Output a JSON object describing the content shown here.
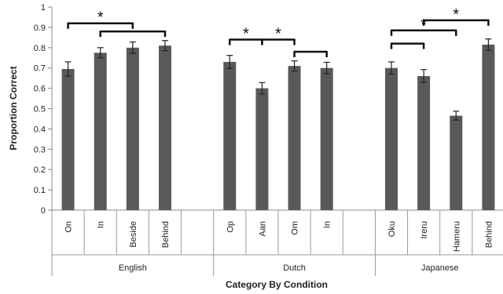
{
  "chart_data": {
    "type": "bar",
    "ylabel": "Proportion Correct",
    "xlabel": "Category By Condition",
    "ylim": [
      0,
      1
    ],
    "yticks": [
      "0",
      "0.1",
      "0.2",
      "0.3",
      "0.4",
      "0.5",
      "0.6",
      "0.7",
      "0.8",
      "0.9",
      "1"
    ],
    "grid": false,
    "bar_color": "#595959",
    "groups": [
      {
        "name": "English",
        "categories": [
          "On",
          "In",
          "Beside",
          "Behind"
        ],
        "values": [
          0.695,
          0.775,
          0.8,
          0.81
        ],
        "errors": [
          0.035,
          0.025,
          0.028,
          0.025
        ]
      },
      {
        "name": "Dutch",
        "categories": [
          "Op",
          "Aan",
          "Om",
          "In"
        ],
        "values": [
          0.73,
          0.6,
          0.71,
          0.7
        ],
        "errors": [
          0.032,
          0.028,
          0.025,
          0.028
        ]
      },
      {
        "name": "Japanese",
        "categories": [
          "Oku",
          "Ireru",
          "Hameru",
          "Behind"
        ],
        "values": [
          0.7,
          0.66,
          0.465,
          0.815
        ],
        "errors": [
          0.03,
          0.032,
          0.022,
          0.028
        ]
      }
    ],
    "annotations": [
      {
        "text": "*",
        "group": 0,
        "from": 0,
        "to": 2,
        "level": 0.92
      },
      {
        "text": "",
        "group": 0,
        "from": 1,
        "to": 3,
        "level": 0.88
      },
      {
        "text": "*",
        "group": 1,
        "from": 0,
        "to": 1,
        "level": 0.84
      },
      {
        "text": "*",
        "group": 1,
        "from": 1,
        "to": 2,
        "level": 0.84
      },
      {
        "text": "",
        "group": 1,
        "from": 2,
        "to": 3,
        "level": 0.78
      },
      {
        "text": "*",
        "group": 2,
        "from": 1,
        "to": 3,
        "level": 0.935
      },
      {
        "text": "*",
        "group": 2,
        "from": 0,
        "to": 2,
        "level": 0.885
      },
      {
        "text": "",
        "group": 2,
        "from": 0,
        "to": 1,
        "level": 0.82
      }
    ]
  }
}
